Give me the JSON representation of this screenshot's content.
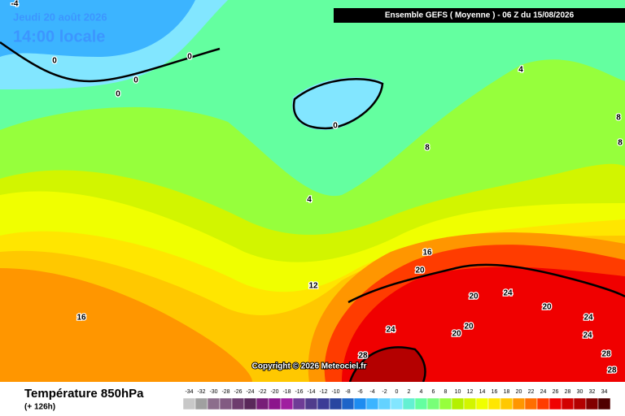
{
  "header": {
    "date_label": "Jeudi 20 août 2026",
    "time_label": "14:00 locale",
    "model_label": "Ensemble GEFS  ( Moyenne )  -  06 Z du 15/08/2026"
  },
  "copyright": "Copyright © 2026 Meteociel.fr",
  "footer": {
    "title": "Température 850hPa",
    "subtitle": "(+ 126h)"
  },
  "contour_labels": [
    "-4",
    "0",
    "0",
    "0",
    "0",
    "0",
    "4",
    "4",
    "8",
    "8",
    "8",
    "12",
    "16",
    "16",
    "20",
    "20",
    "20",
    "20",
    "20",
    "24",
    "24",
    "24",
    "24",
    "28",
    "28",
    "28"
  ],
  "scale": {
    "labels": [
      -34,
      -32,
      -30,
      -28,
      -26,
      -24,
      -22,
      -20,
      -18,
      -16,
      -14,
      -12,
      -10,
      -8,
      -6,
      -4,
      -2,
      0,
      2,
      4,
      6,
      8,
      10,
      12,
      14,
      16,
      18,
      20,
      22,
      24,
      26,
      28,
      30,
      32,
      34
    ],
    "colors": [
      "#c8c8c8",
      "#a0a0a0",
      "#8c6e8c",
      "#825a82",
      "#6e3c6e",
      "#5a285a",
      "#781e78",
      "#8c148c",
      "#a01ea0",
      "#6e3c96",
      "#503c8c",
      "#3c3c96",
      "#2846a0",
      "#1e64c8",
      "#1e8cf0",
      "#3cb4ff",
      "#64d2ff",
      "#82e6ff",
      "#64f0d2",
      "#64ffa0",
      "#78ff78",
      "#96ff3c",
      "#b4f000",
      "#d2f500",
      "#f0ff00",
      "#ffe600",
      "#ffc800",
      "#ff9600",
      "#ff6e00",
      "#ff3c00",
      "#f00000",
      "#d20000",
      "#b40000",
      "#820000",
      "#500000"
    ]
  }
}
